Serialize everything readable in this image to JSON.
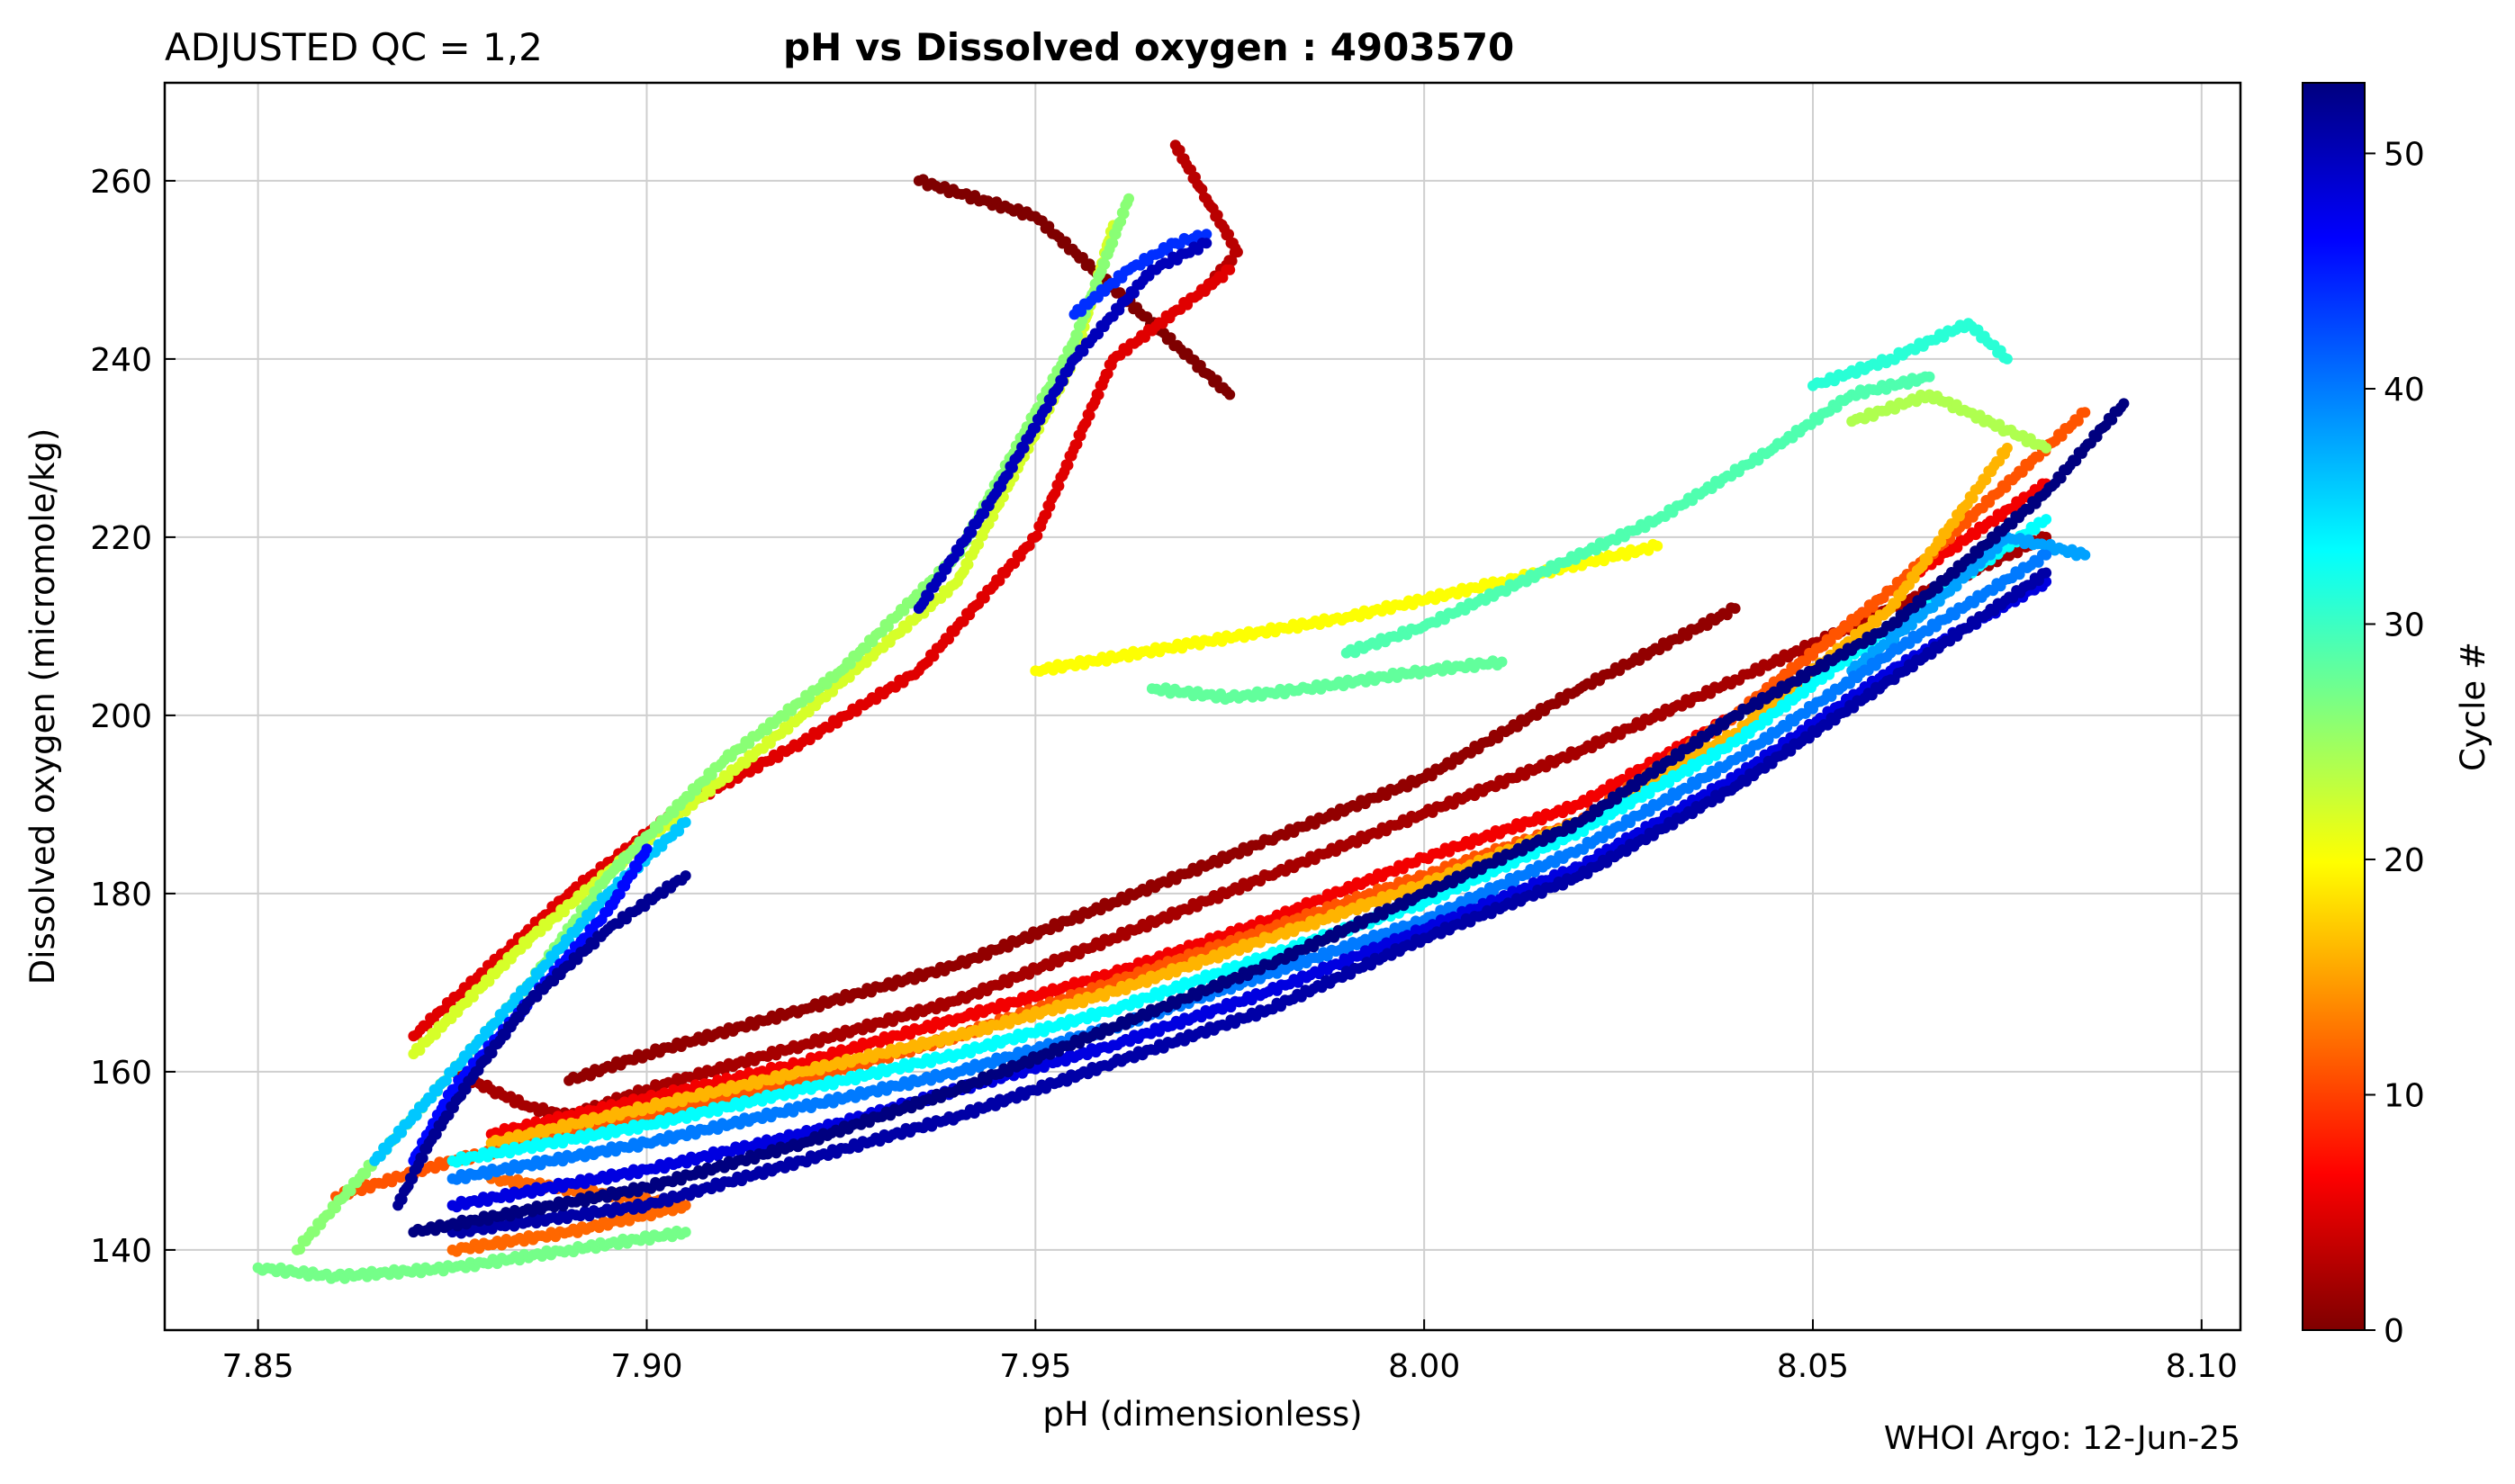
{
  "header": {
    "qc_label": "ADJUSTED QC = 1,2",
    "title": "pH vs Dissolved oxygen : 4903570"
  },
  "footer": {
    "credit": "WHOI Argo: 12-Jun-25"
  },
  "chart_data": {
    "type": "scatter",
    "title": "pH vs Dissolved oxygen : 4903570",
    "xlabel": "pH  (dimensionless)",
    "ylabel": "Dissolved oxygen  (micromole/kg)",
    "xlim": [
      7.838,
      8.105
    ],
    "ylim": [
      131,
      271
    ],
    "xticks": [
      7.85,
      7.9,
      7.95,
      8.0,
      8.05,
      8.1
    ],
    "xtick_labels": [
      "7.85",
      "7.90",
      "7.95",
      "8.00",
      "8.05",
      "8.10"
    ],
    "yticks": [
      140,
      160,
      180,
      200,
      220,
      240,
      260
    ],
    "ytick_labels": [
      "140",
      "160",
      "180",
      "200",
      "220",
      "240",
      "260"
    ],
    "grid": true,
    "colormap": "jet",
    "colorbar": {
      "label": "Cycle #",
      "range": [
        0,
        53
      ],
      "ticks": [
        0,
        10,
        20,
        30,
        40,
        50
      ],
      "tick_labels": [
        "0",
        "10",
        "20",
        "30",
        "40",
        "50"
      ],
      "colors": [
        "#7f0000",
        "#ff0000",
        "#ff7f00",
        "#ffff00",
        "#7fff7f",
        "#00ffff",
        "#007fff",
        "#0000ff",
        "#00007f"
      ]
    },
    "series": [
      {
        "cycle": 0,
        "points": [
          [
            7.935,
            260
          ],
          [
            7.95,
            256
          ],
          [
            7.96,
            248
          ],
          [
            7.97,
            240
          ],
          [
            7.975,
            236
          ]
        ]
      },
      {
        "cycle": 3,
        "points": [
          [
            7.968,
            264
          ],
          [
            7.972,
            258
          ],
          [
            7.976,
            252
          ],
          [
            7.972,
            248
          ]
        ]
      },
      {
        "cycle": 2,
        "points": [
          [
            7.875,
            160
          ],
          [
            7.88,
            158
          ],
          [
            7.885,
            156
          ],
          [
            7.89,
            155
          ],
          [
            7.9,
            158
          ],
          [
            7.92,
            163
          ],
          [
            7.94,
            168
          ],
          [
            7.96,
            175
          ],
          [
            7.98,
            182
          ],
          [
            8.0,
            189
          ],
          [
            8.02,
            196
          ],
          [
            8.04,
            204
          ],
          [
            8.06,
            212
          ],
          [
            8.08,
            220
          ]
        ]
      },
      {
        "cycle": 1,
        "points": [
          [
            7.89,
            159
          ],
          [
            7.9,
            162
          ],
          [
            7.92,
            167
          ],
          [
            7.94,
            172
          ],
          [
            7.96,
            179
          ],
          [
            7.98,
            186
          ],
          [
            8.0,
            193
          ],
          [
            8.02,
            203
          ],
          [
            8.04,
            212
          ]
        ]
      },
      {
        "cycle": 5,
        "points": [
          [
            7.87,
            164
          ],
          [
            7.88,
            172
          ],
          [
            7.89,
            180
          ],
          [
            7.905,
            190
          ],
          [
            7.92,
            197
          ],
          [
            7.935,
            205
          ],
          [
            7.95,
            220
          ],
          [
            7.96,
            240
          ],
          [
            7.975,
            250
          ]
        ]
      },
      {
        "cycle": 6,
        "points": [
          [
            7.88,
            153
          ],
          [
            7.9,
            157
          ],
          [
            7.92,
            161
          ],
          [
            7.94,
            166
          ],
          [
            7.96,
            171
          ],
          [
            7.98,
            177
          ],
          [
            8.0,
            184
          ],
          [
            8.02,
            190
          ],
          [
            8.04,
            200
          ],
          [
            8.06,
            214
          ],
          [
            8.08,
            226
          ]
        ]
      },
      {
        "cycle": 11,
        "points": [
          [
            7.86,
            146
          ],
          [
            7.875,
            150
          ],
          [
            7.9,
            155
          ],
          [
            7.92,
            159
          ],
          [
            7.94,
            164
          ],
          [
            7.96,
            170
          ],
          [
            7.98,
            176
          ],
          [
            8.0,
            182
          ],
          [
            8.02,
            188
          ],
          [
            8.04,
            200
          ],
          [
            8.06,
            214
          ],
          [
            8.085,
            234
          ]
        ]
      },
      {
        "cycle": 12,
        "points": [
          [
            7.875,
            140
          ],
          [
            7.89,
            142
          ],
          [
            7.905,
            145
          ],
          [
            7.88,
            148
          ]
        ]
      },
      {
        "cycle": 16,
        "points": [
          [
            7.88,
            152
          ],
          [
            7.9,
            156
          ],
          [
            7.92,
            160
          ],
          [
            7.94,
            164
          ],
          [
            7.96,
            169
          ],
          [
            7.98,
            175
          ],
          [
            8.0,
            181
          ],
          [
            8.02,
            188
          ],
          [
            8.04,
            198
          ],
          [
            8.06,
            212
          ],
          [
            8.075,
            230
          ]
        ]
      },
      {
        "cycle": 20,
        "points": [
          [
            7.95,
            205
          ],
          [
            7.97,
            208
          ],
          [
            7.99,
            211
          ],
          [
            8.01,
            215
          ],
          [
            8.03,
            219
          ]
        ]
      },
      {
        "cycle": 22,
        "points": [
          [
            7.87,
            162
          ],
          [
            7.885,
            175
          ],
          [
            7.9,
            186
          ],
          [
            7.92,
            200
          ],
          [
            7.94,
            215
          ],
          [
            7.955,
            240
          ],
          [
            7.96,
            255
          ]
        ]
      },
      {
        "cycle": 26,
        "points": [
          [
            7.855,
            140
          ],
          [
            7.865,
            150
          ],
          [
            7.875,
            160
          ],
          [
            7.885,
            170
          ],
          [
            7.895,
            182
          ],
          [
            7.91,
            195
          ],
          [
            7.925,
            205
          ],
          [
            7.94,
            218
          ],
          [
            7.955,
            242
          ],
          [
            7.962,
            258
          ]
        ]
      },
      {
        "cycle": 27,
        "points": [
          [
            7.85,
            138
          ],
          [
            7.86,
            137
          ],
          [
            7.875,
            138
          ],
          [
            7.89,
            140
          ],
          [
            7.905,
            142
          ]
        ]
      },
      {
        "cycle": 28,
        "points": [
          [
            7.965,
            203
          ],
          [
            7.975,
            202
          ],
          [
            7.985,
            203
          ],
          [
            8.0,
            205
          ],
          [
            8.01,
            206
          ]
        ]
      },
      {
        "cycle": 29,
        "points": [
          [
            7.99,
            207
          ],
          [
            8.0,
            210
          ],
          [
            8.01,
            214
          ],
          [
            8.03,
            222
          ],
          [
            8.045,
            230
          ],
          [
            8.055,
            236
          ],
          [
            8.065,
            238
          ]
        ]
      },
      {
        "cycle": 31,
        "points": [
          [
            8.05,
            237
          ],
          [
            8.06,
            240
          ],
          [
            8.07,
            244
          ],
          [
            8.075,
            240
          ]
        ]
      },
      {
        "cycle": 24,
        "points": [
          [
            8.055,
            233
          ],
          [
            8.065,
            236
          ],
          [
            8.07,
            234
          ],
          [
            8.075,
            232
          ],
          [
            8.08,
            230
          ]
        ]
      },
      {
        "cycle": 33,
        "points": [
          [
            7.875,
            150
          ],
          [
            7.9,
            154
          ],
          [
            7.92,
            158
          ],
          [
            7.94,
            162
          ],
          [
            7.96,
            167
          ],
          [
            7.98,
            173
          ],
          [
            8.0,
            179
          ],
          [
            8.02,
            187
          ],
          [
            8.04,
            197
          ],
          [
            8.06,
            210
          ],
          [
            8.08,
            222
          ]
        ]
      },
      {
        "cycle": 36,
        "points": [
          [
            7.865,
            150
          ],
          [
            7.875,
            160
          ],
          [
            7.885,
            170
          ],
          [
            7.895,
            180
          ],
          [
            7.905,
            188
          ]
        ]
      },
      {
        "cycle": 38,
        "points": [
          [
            8.055,
            205
          ],
          [
            8.065,
            212
          ],
          [
            8.075,
            220
          ],
          [
            8.085,
            218
          ]
        ]
      },
      {
        "cycle": 40,
        "points": [
          [
            7.875,
            148
          ],
          [
            7.9,
            152
          ],
          [
            7.92,
            156
          ],
          [
            7.94,
            160
          ],
          [
            7.96,
            165
          ],
          [
            7.98,
            171
          ],
          [
            8.0,
            177
          ],
          [
            8.02,
            185
          ],
          [
            8.04,
            195
          ],
          [
            8.06,
            207
          ],
          [
            8.08,
            218
          ]
        ]
      },
      {
        "cycle": 44,
        "points": [
          [
            7.955,
            245
          ],
          [
            7.962,
            250
          ],
          [
            7.968,
            253
          ],
          [
            7.972,
            254
          ]
        ]
      },
      {
        "cycle": 46,
        "points": [
          [
            7.87,
            150
          ],
          [
            7.875,
            158
          ],
          [
            7.885,
            168
          ],
          [
            7.895,
            178
          ],
          [
            7.9,
            185
          ]
        ]
      },
      {
        "cycle": 48,
        "points": [
          [
            7.875,
            145
          ],
          [
            7.9,
            149
          ],
          [
            7.92,
            153
          ],
          [
            7.94,
            158
          ],
          [
            7.96,
            163
          ],
          [
            7.98,
            169
          ],
          [
            8.0,
            176
          ],
          [
            8.02,
            183
          ],
          [
            8.04,
            193
          ],
          [
            8.06,
            205
          ],
          [
            8.08,
            215
          ]
        ]
      },
      {
        "cycle": 50,
        "points": [
          [
            7.935,
            212
          ],
          [
            7.945,
            225
          ],
          [
            7.955,
            240
          ],
          [
            7.965,
            250
          ],
          [
            7.972,
            253
          ]
        ]
      },
      {
        "cycle": 51,
        "points": [
          [
            7.875,
            142
          ],
          [
            7.9,
            145
          ],
          [
            7.92,
            150
          ],
          [
            7.94,
            155
          ],
          [
            7.96,
            161
          ],
          [
            7.98,
            167
          ],
          [
            8.0,
            175
          ],
          [
            8.02,
            182
          ],
          [
            8.04,
            192
          ],
          [
            8.06,
            204
          ],
          [
            8.08,
            216
          ]
        ]
      },
      {
        "cycle": 52,
        "points": [
          [
            7.868,
            145
          ],
          [
            7.872,
            152
          ],
          [
            7.878,
            160
          ],
          [
            7.885,
            168
          ],
          [
            7.895,
            176
          ],
          [
            7.905,
            182
          ]
        ]
      },
      {
        "cycle": 53,
        "points": [
          [
            7.87,
            142
          ],
          [
            7.9,
            147
          ],
          [
            7.92,
            152
          ],
          [
            7.94,
            158
          ],
          [
            7.96,
            165
          ],
          [
            7.98,
            172
          ],
          [
            8.0,
            180
          ],
          [
            8.02,
            188
          ],
          [
            8.04,
            200
          ],
          [
            8.06,
            210
          ],
          [
            8.08,
            225
          ],
          [
            8.09,
            235
          ]
        ]
      }
    ]
  }
}
